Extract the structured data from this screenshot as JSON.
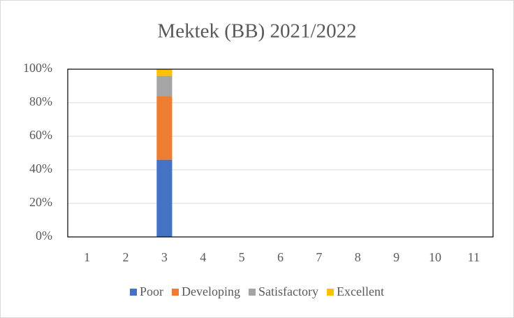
{
  "chart_data": {
    "type": "stacked_bar",
    "title": "Mektek (BB) 2021/2022",
    "categories": [
      "1",
      "2",
      "3",
      "4",
      "5",
      "6",
      "7",
      "8",
      "9",
      "10",
      "11"
    ],
    "series": [
      {
        "name": "Poor",
        "color": "#4472c4",
        "values": [
          0,
          0,
          46,
          0,
          0,
          0,
          0,
          0,
          0,
          0,
          0
        ]
      },
      {
        "name": "Developing",
        "color": "#ed7d31",
        "values": [
          0,
          0,
          38,
          0,
          0,
          0,
          0,
          0,
          0,
          0,
          0
        ]
      },
      {
        "name": "Satisfactory",
        "color": "#a5a5a5",
        "values": [
          0,
          0,
          12,
          0,
          0,
          0,
          0,
          0,
          0,
          0,
          0
        ]
      },
      {
        "name": "Excellent",
        "color": "#ffc000",
        "values": [
          0,
          0,
          4,
          0,
          0,
          0,
          0,
          0,
          0,
          0,
          0
        ]
      }
    ],
    "ylim": [
      0,
      100
    ],
    "yticks": [
      {
        "value": 0,
        "label": "0%"
      },
      {
        "value": 20,
        "label": "20%"
      },
      {
        "value": 40,
        "label": "40%"
      },
      {
        "value": 60,
        "label": "60%"
      },
      {
        "value": 80,
        "label": "80%"
      },
      {
        "value": 100,
        "label": "100%"
      }
    ],
    "grid": true,
    "legend": "bottom"
  }
}
